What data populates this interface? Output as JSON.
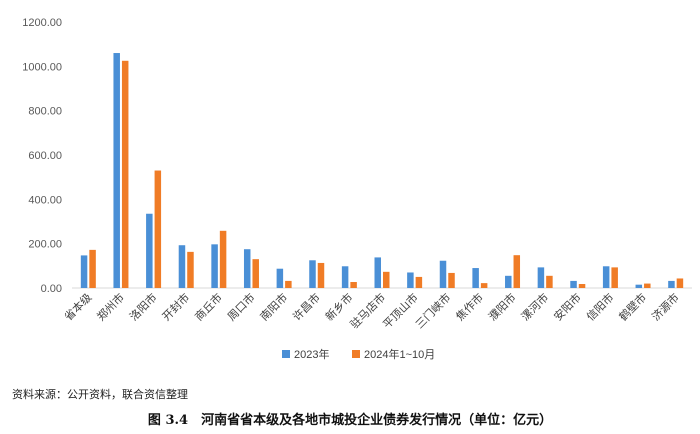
{
  "chart_data": {
    "type": "bar",
    "title": "",
    "xlabel": "",
    "ylabel": "",
    "ylim": [
      0,
      1200
    ],
    "yticks": [
      "0.00",
      "200.00",
      "400.00",
      "600.00",
      "800.00",
      "1000.00",
      "1200.00"
    ],
    "grid": false,
    "legend_position": "bottom",
    "categories": [
      "省本级",
      "郑州市",
      "洛阳市",
      "开封市",
      "商丘市",
      "周口市",
      "南阳市",
      "许昌市",
      "新乡市",
      "驻马店市",
      "平顶山市",
      "三门峡市",
      "焦作市",
      "濮阳市",
      "漯河市",
      "安阳市",
      "信阳市",
      "鹤壁市",
      "济源市"
    ],
    "series": [
      {
        "name": "2023年",
        "color": "#4a8fd6",
        "values": [
          147,
          1060,
          335,
          193,
          197,
          175,
          87,
          125,
          98,
          138,
          70,
          123,
          90,
          55,
          93,
          32,
          98,
          15,
          32
        ]
      },
      {
        "name": "2024年1~10月",
        "color": "#f07c26",
        "values": [
          172,
          1025,
          530,
          163,
          258,
          130,
          32,
          113,
          27,
          73,
          50,
          68,
          22,
          148,
          55,
          18,
          93,
          20,
          43
        ]
      }
    ]
  },
  "source_note": "资料来源：公开资料，联合资信整理",
  "caption": "图 3.4　河南省省本级及各地市城投企业债券发行情况（单位：亿元）"
}
